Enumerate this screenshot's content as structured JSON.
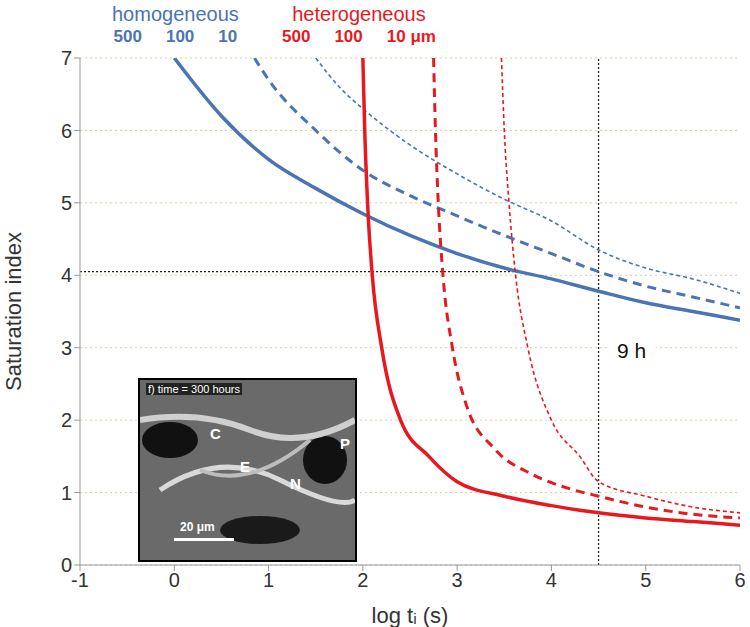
{
  "chart_data": {
    "type": "line",
    "x_label": "log tᵢ (s)",
    "y_label": "Saturation index",
    "xlim": [
      -1,
      6
    ],
    "ylim": [
      0,
      7
    ],
    "xticks": [
      -1,
      0,
      1,
      2,
      3,
      4,
      5,
      6
    ],
    "yticks": [
      0,
      1,
      2,
      3,
      4,
      5,
      6,
      7
    ],
    "grid": true,
    "groups": [
      "homogeneous",
      "heterogeneous"
    ],
    "series": [
      {
        "name": "500",
        "group": "homogeneous",
        "color": "#4a74b4",
        "line_style": "solid",
        "x": [
          0,
          0.5,
          1,
          1.5,
          2,
          2.5,
          3,
          3.5,
          4,
          4.5,
          5,
          5.5,
          6
        ],
        "values": [
          7.0,
          6.2,
          5.6,
          5.2,
          4.85,
          4.55,
          4.3,
          4.1,
          3.95,
          3.78,
          3.62,
          3.5,
          3.38
        ]
      },
      {
        "name": "100",
        "group": "homogeneous",
        "color": "#4a74b4",
        "line_style": "dashed",
        "x": [
          0.85,
          1,
          1.5,
          2,
          2.5,
          3,
          3.5,
          4,
          4.5,
          5,
          5.5,
          6
        ],
        "values": [
          7.0,
          6.7,
          6.0,
          5.45,
          5.1,
          4.82,
          4.55,
          4.3,
          4.05,
          3.85,
          3.7,
          3.55
        ]
      },
      {
        "name": "10",
        "group": "homogeneous",
        "color": "#4a74b4",
        "line_style": "dotted",
        "x": [
          1.5,
          1.75,
          2,
          2.5,
          3,
          3.5,
          4,
          4.5,
          5,
          5.5,
          6
        ],
        "values": [
          7.0,
          6.6,
          6.3,
          5.8,
          5.4,
          5.05,
          4.75,
          4.35,
          4.1,
          3.95,
          3.75
        ]
      },
      {
        "name": "500",
        "group": "heterogeneous",
        "color": "#e8191e",
        "line_style": "solid",
        "x": [
          2.0,
          2.02,
          2.05,
          2.1,
          2.2,
          2.4,
          2.7,
          3,
          3.5,
          4,
          4.5,
          5,
          5.5,
          6
        ],
        "values": [
          7.0,
          6.0,
          5.0,
          4.0,
          3.0,
          2.0,
          1.5,
          1.15,
          0.95,
          0.82,
          0.72,
          0.65,
          0.6,
          0.55
        ]
      },
      {
        "name": "100",
        "group": "heterogeneous",
        "color": "#e8191e",
        "line_style": "dashed",
        "x": [
          2.75,
          2.77,
          2.8,
          2.85,
          2.95,
          3.1,
          3.4,
          3.8,
          4.2,
          4.5,
          5,
          5.5,
          6
        ],
        "values": [
          7.0,
          6.0,
          5.0,
          4.0,
          3.0,
          2.2,
          1.6,
          1.25,
          1.05,
          0.95,
          0.8,
          0.7,
          0.65
        ]
      },
      {
        "name": "10 μm",
        "group": "heterogeneous",
        "color": "#e8191e",
        "line_style": "dotted",
        "x": [
          3.47,
          3.5,
          3.55,
          3.62,
          3.75,
          4,
          4.3,
          4.5,
          5,
          5.5,
          6
        ],
        "values": [
          7.0,
          6.0,
          5.0,
          4.0,
          3.0,
          2.0,
          1.5,
          1.15,
          0.95,
          0.8,
          0.72
        ]
      }
    ],
    "reference_lines": [
      {
        "x": [
          -1,
          3.6
        ],
        "y": [
          4.05,
          4.05
        ]
      },
      {
        "x": [
          4.5,
          4.5
        ],
        "y": [
          0,
          7
        ]
      }
    ],
    "annotations": [
      {
        "text": "9 h",
        "x": 4.85,
        "y": 2.95
      }
    ],
    "inset": {
      "title": "f) time = 300 hours",
      "labels": [
        "C",
        "E",
        "N",
        "P"
      ],
      "scale_bar": "20 μm"
    }
  }
}
